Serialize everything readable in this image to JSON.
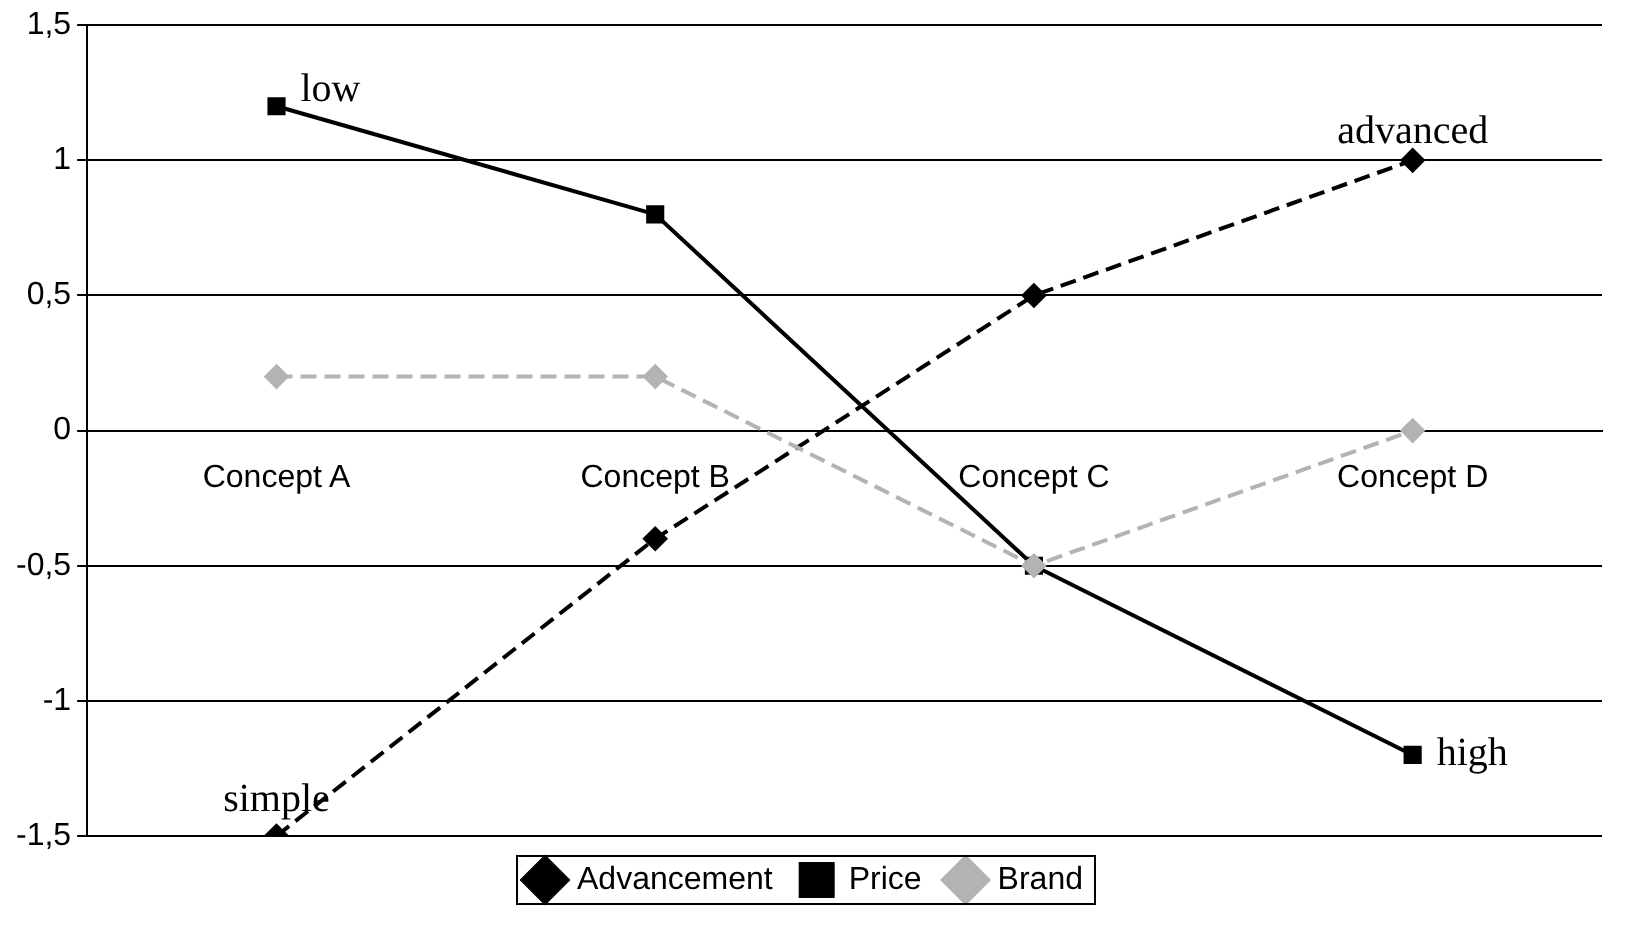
{
  "chart_data": {
    "type": "line",
    "categories": [
      "Concept A",
      "Concept B",
      "Concept C",
      "Concept D"
    ],
    "series": [
      {
        "name": "Advancement",
        "color": "#000000",
        "values": [
          -1.5,
          -0.4,
          0.5,
          1.0
        ],
        "line_style": "dashed",
        "marker": "diamond"
      },
      {
        "name": "Price",
        "color": "#000000",
        "values": [
          1.2,
          0.8,
          -0.5,
          -1.2
        ],
        "line_style": "solid",
        "marker": "square"
      },
      {
        "name": "Brand",
        "color": "#b3b3b3",
        "values": [
          0.2,
          0.2,
          -0.5,
          0.0
        ],
        "line_style": "dashed",
        "marker": "diamond"
      }
    ],
    "ylim": [
      -1.5,
      1.5
    ],
    "yticks": [
      {
        "value": -1.5,
        "label": "-1,5"
      },
      {
        "value": -1,
        "label": "-1"
      },
      {
        "value": -0.5,
        "label": "-0,5"
      },
      {
        "value": 0,
        "label": "0"
      },
      {
        "value": 0.5,
        "label": "0,5"
      },
      {
        "value": 1,
        "label": "1"
      },
      {
        "value": 1.5,
        "label": "1,5"
      }
    ],
    "grid": "y",
    "legend": "bottom",
    "annotations": [
      {
        "text": "low",
        "x": "Concept A",
        "y": 1.2
      },
      {
        "text": "advanced",
        "x": "Concept D",
        "y": 1.0
      },
      {
        "text": "simple",
        "x": "Concept A",
        "y": -1.5
      },
      {
        "text": "high",
        "x": "Concept D",
        "y": -1.2
      }
    ]
  }
}
